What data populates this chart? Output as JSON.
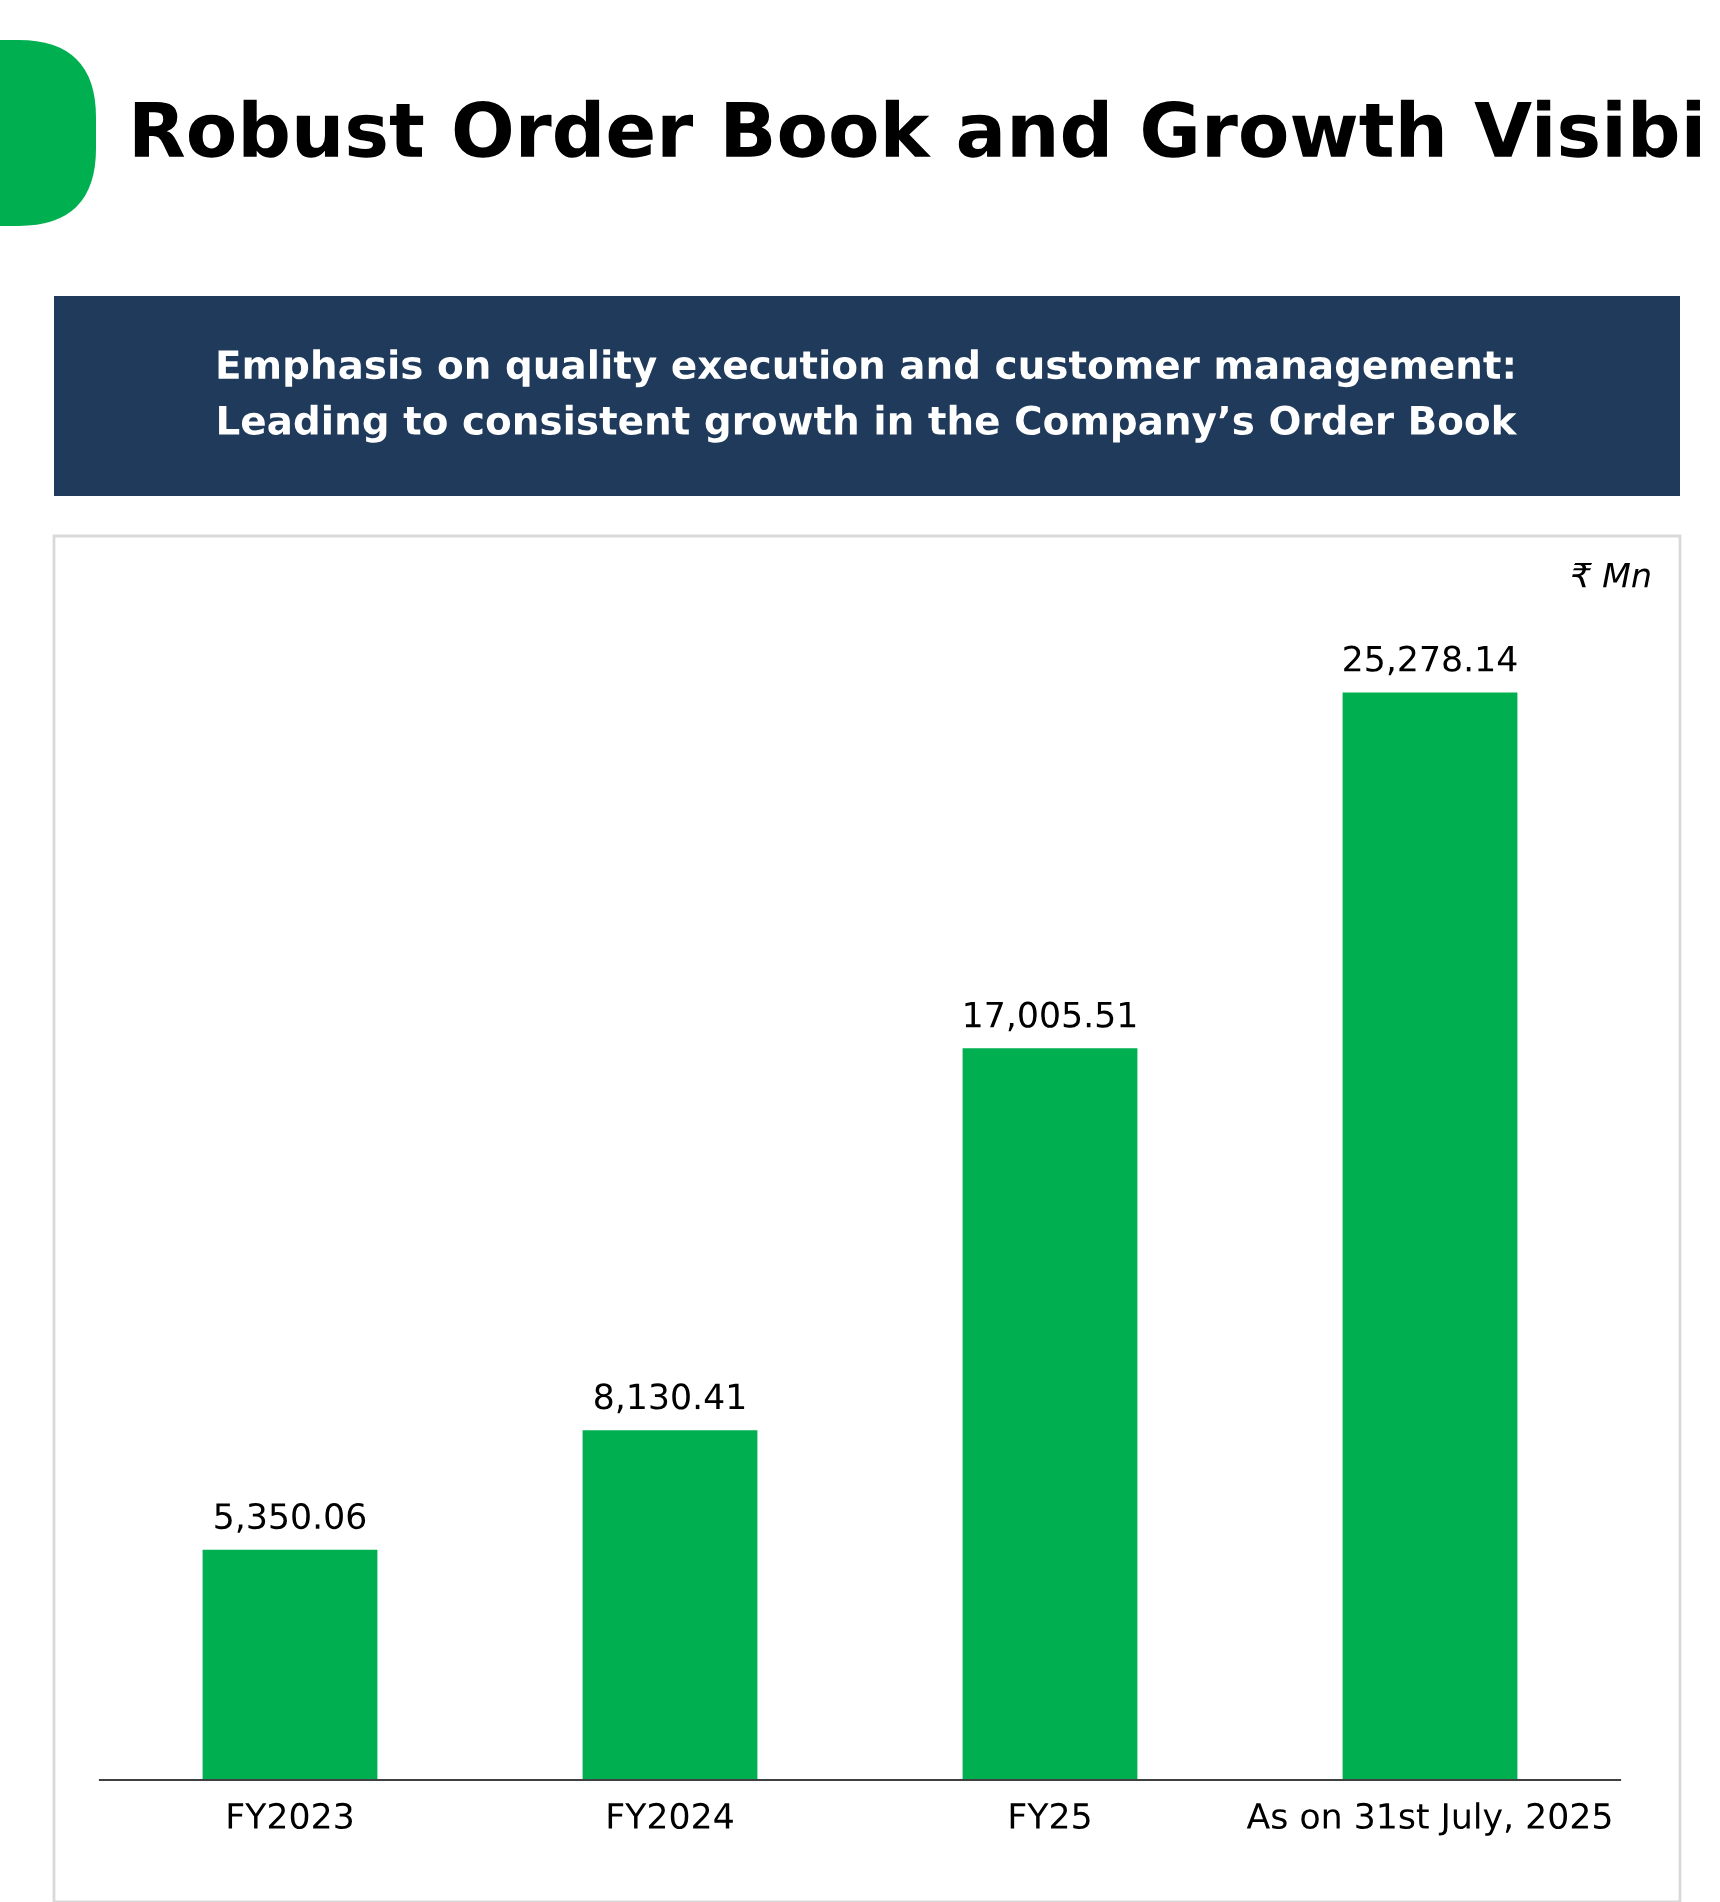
{
  "chart_data": {
    "type": "bar",
    "title": "Robust Order Book and Growth Visibi",
    "subtitle": "Emphasis on quality execution and customer management:\nLeading to consistent growth in the Company’s Order Book",
    "annotations": [
      "₹ Mn"
    ],
    "categories": [
      "FY2023",
      "FY2024",
      "FY25",
      "As on 31st July, 2025"
    ],
    "values": [
      5350.06,
      8130.41,
      17005.51,
      25278.14
    ],
    "color": "#00b050",
    "value_labels": [
      "5,350.06",
      "8,130.41",
      "17,005.51",
      "25,278.14"
    ],
    "grid": false,
    "legend": false
  }
}
